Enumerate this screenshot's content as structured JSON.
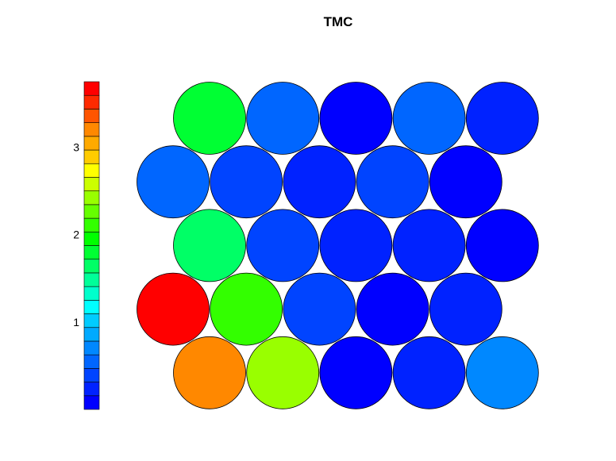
{
  "chart_data": {
    "type": "heatmap",
    "title": "TMC",
    "xlabel": "",
    "ylabel": "",
    "colorbar": {
      "min": 0.0,
      "max": 3.75,
      "steps": 24,
      "ticks": [
        1,
        2,
        3
      ],
      "tick_labels": [
        "1",
        "2",
        "3"
      ],
      "colors": [
        "#0000FF",
        "#0022FF",
        "#0044FF",
        "#0066FF",
        "#0088FF",
        "#00AAFF",
        "#00CCFF",
        "#00FFFF",
        "#00FFCC",
        "#00FF99",
        "#00FF66",
        "#00FF33",
        "#00FF00",
        "#33FF00",
        "#66FF00",
        "#99FF00",
        "#CCFF00",
        "#FFFF00",
        "#FFCC00",
        "#FFAA00",
        "#FF8800",
        "#FF5500",
        "#FF2A00",
        "#FF0000"
      ]
    },
    "rows": [
      {
        "offset": true,
        "values": [
          1.82,
          0.48,
          0.02,
          0.52,
          0.28
        ]
      },
      {
        "offset": false,
        "values": [
          0.5,
          0.46,
          0.28,
          0.34,
          0.05
        ]
      },
      {
        "offset": true,
        "values": [
          1.68,
          0.46,
          0.3,
          0.24,
          0.03
        ]
      },
      {
        "offset": false,
        "values": [
          3.75,
          2.1,
          0.46,
          0.06,
          0.28
        ]
      },
      {
        "offset": true,
        "values": [
          3.2,
          2.45,
          0.06,
          0.22,
          0.72
        ]
      }
    ]
  }
}
